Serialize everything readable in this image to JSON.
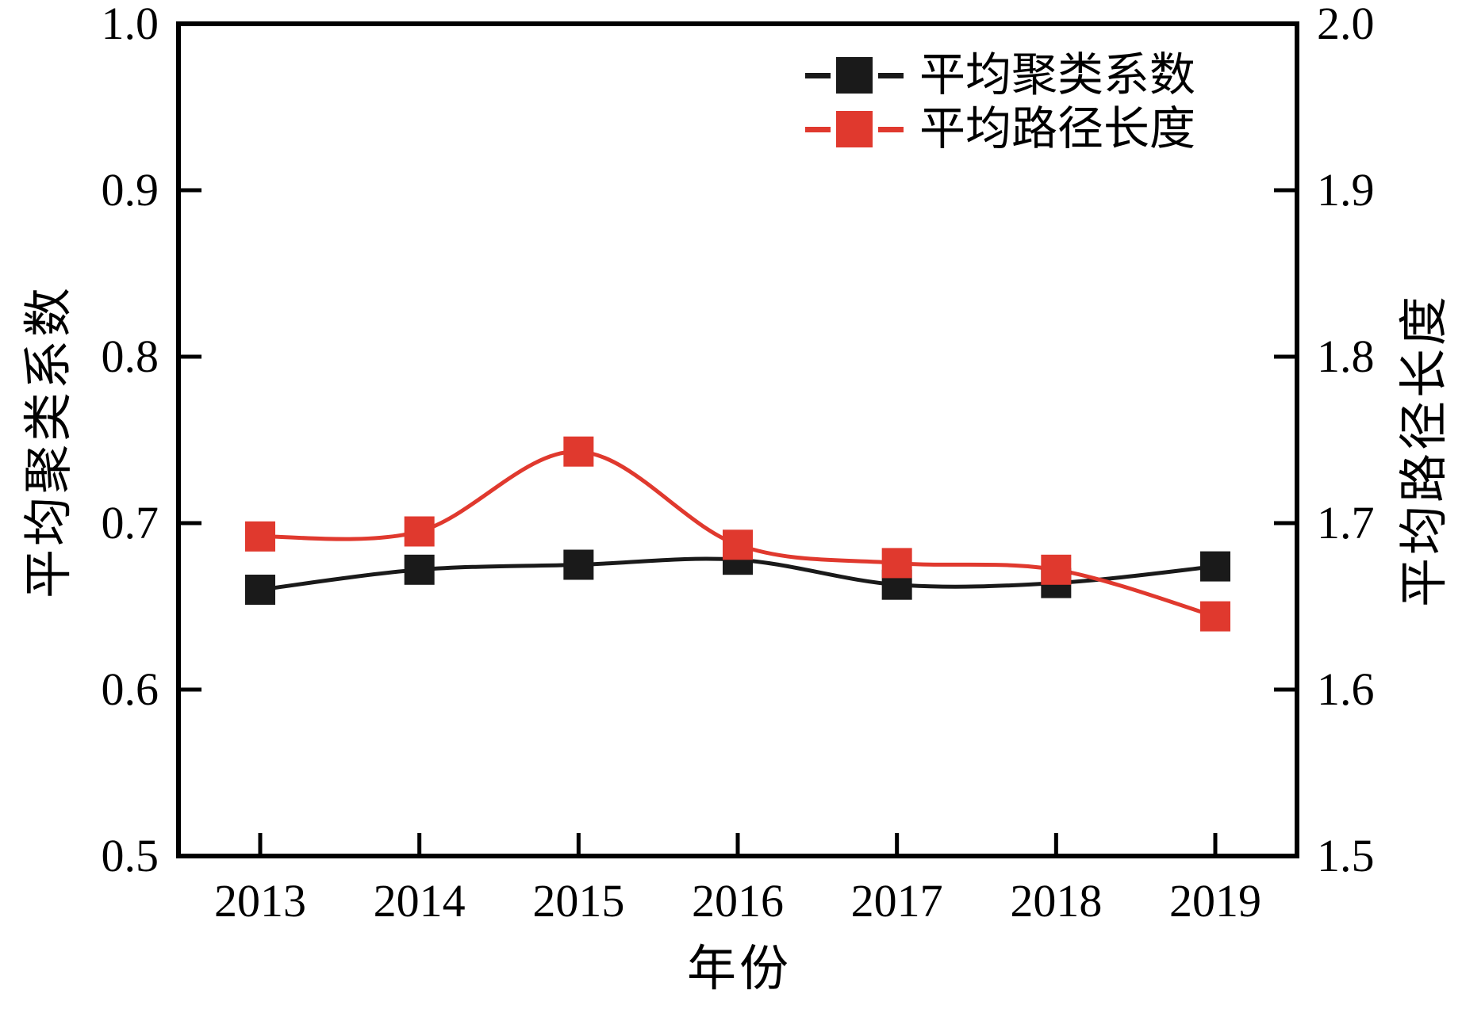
{
  "chart_data": {
    "type": "line",
    "x": [
      "2013",
      "2014",
      "2015",
      "2016",
      "2017",
      "2018",
      "2019"
    ],
    "xlabel": "年份",
    "ylabel_left": "平均聚类系数",
    "ylabel_right": "平均路径长度",
    "left_axis": {
      "range": [
        0.5,
        1.0
      ],
      "ticks": [
        "0.5",
        "0.6",
        "0.7",
        "0.8",
        "0.9",
        "1.0"
      ]
    },
    "right_axis": {
      "range": [
        1.5,
        2.0
      ],
      "ticks": [
        "1.5",
        "1.6",
        "1.7",
        "1.8",
        "1.9",
        "2.0"
      ]
    },
    "series": [
      {
        "name": "平均聚类系数",
        "axis": "left",
        "color": "#1a1a1a",
        "marker": "square",
        "line_style": "solid",
        "values": [
          0.66,
          0.672,
          0.675,
          0.678,
          0.663,
          0.664,
          0.674
        ]
      },
      {
        "name": "平均路径长度",
        "axis": "right",
        "color": "#e0392e",
        "marker": "square",
        "line_style": "solid",
        "values": [
          1.692,
          1.695,
          1.743,
          1.687,
          1.676,
          1.672,
          1.644
        ]
      }
    ],
    "legend_position": "top-right",
    "grid": false,
    "frame_color": "#000000"
  }
}
